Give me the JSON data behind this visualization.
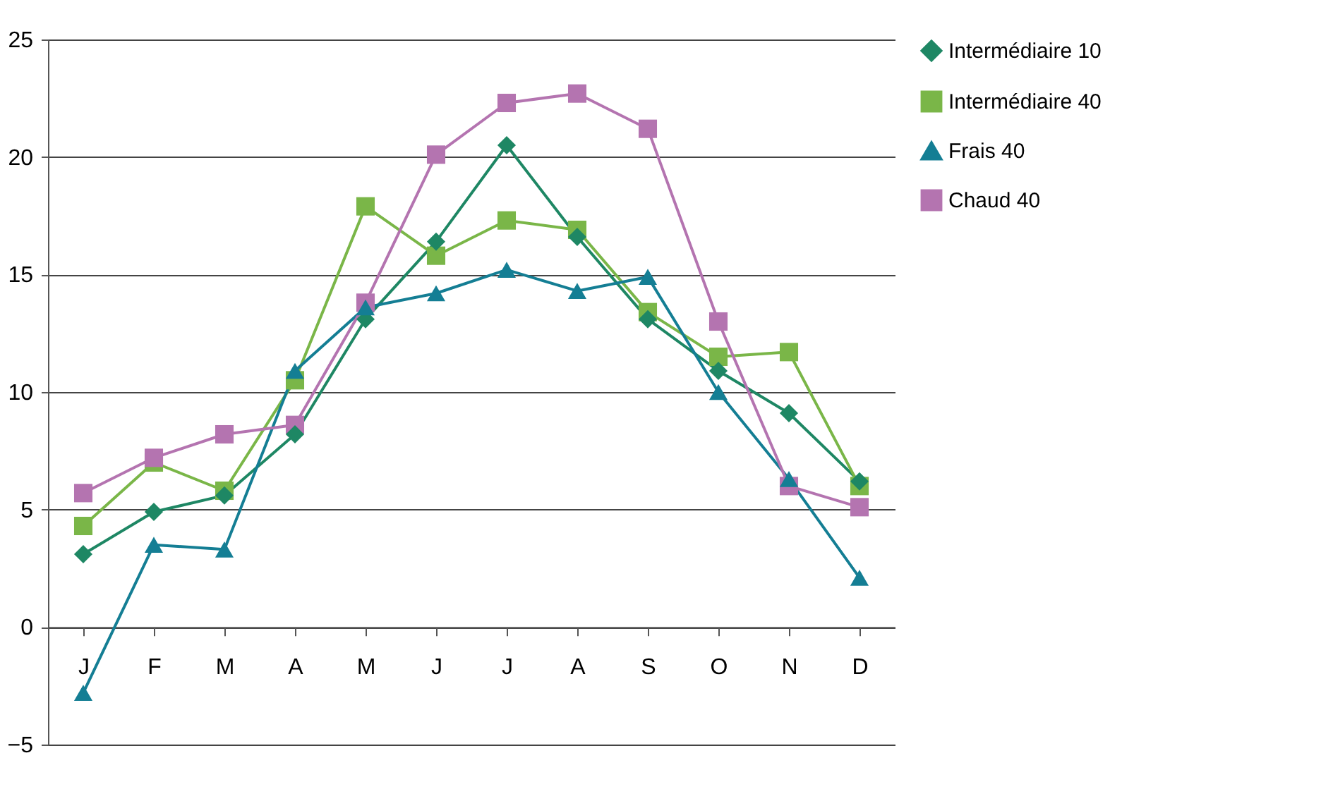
{
  "chart_data": {
    "type": "line",
    "categories": [
      "J",
      "F",
      "M",
      "A",
      "M",
      "J",
      "J",
      "A",
      "S",
      "O",
      "N",
      "D"
    ],
    "series": [
      {
        "name": "Intermédiaire 10",
        "color": "#1e8764",
        "marker": "diamond",
        "values": [
          3.1,
          4.9,
          5.6,
          8.2,
          13.1,
          16.4,
          20.5,
          16.6,
          13.1,
          10.9,
          9.1,
          6.2
        ]
      },
      {
        "name": "Intermédiaire 40",
        "color": "#7ab648",
        "marker": "square",
        "values": [
          4.3,
          7.0,
          5.8,
          10.5,
          17.9,
          15.8,
          17.3,
          16.9,
          13.4,
          11.5,
          11.7,
          6.0
        ]
      },
      {
        "name": "Frais 40",
        "color": "#147e94",
        "marker": "triangle",
        "values": [
          -2.8,
          3.5,
          3.3,
          10.9,
          13.6,
          14.2,
          15.2,
          14.3,
          14.9,
          10.0,
          6.3,
          2.1
        ]
      },
      {
        "name": "Chaud 40",
        "color": "#b474b0",
        "marker": "square",
        "values": [
          5.7,
          7.2,
          8.2,
          8.6,
          13.8,
          20.1,
          22.3,
          22.7,
          21.2,
          13.0,
          6.0,
          5.1
        ]
      }
    ],
    "ylim": [
      -5,
      25
    ],
    "yticks": [
      -5,
      0,
      5,
      10,
      15,
      20,
      25
    ],
    "grid": "y",
    "legend": "right",
    "line_style": "solid"
  }
}
